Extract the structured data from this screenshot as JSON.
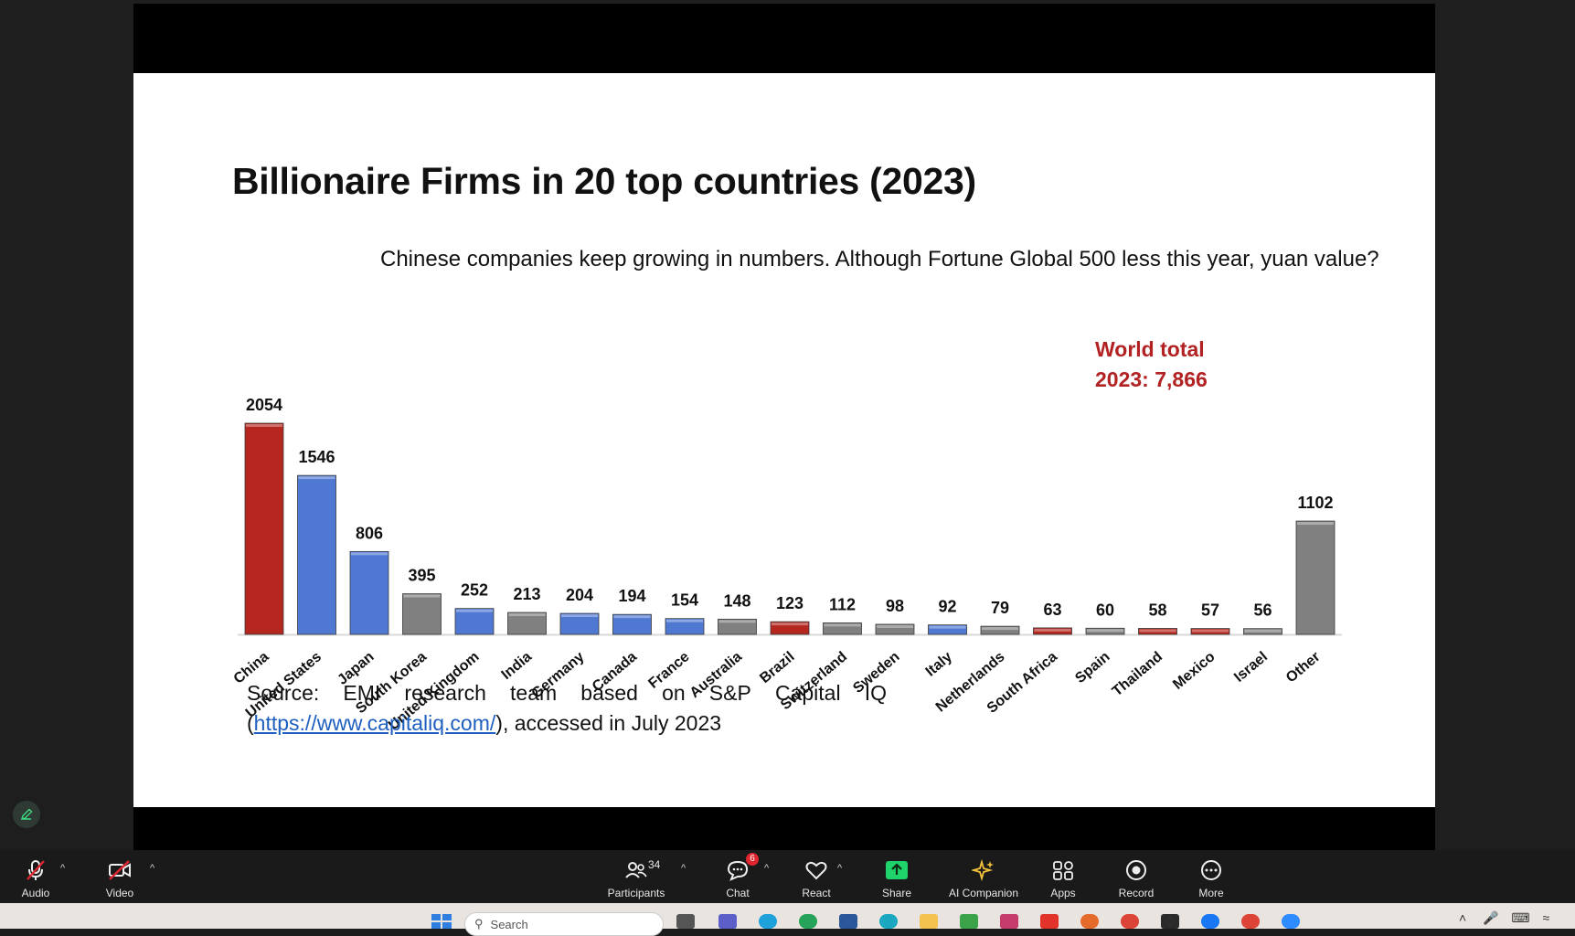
{
  "slide": {
    "title": "Billionaire Firms in 20 top countries (2023)",
    "subtitle": "Chinese companies keep growing in numbers. Although Fortune Global 500 less this year, yuan value?",
    "world_total_line1": "World total",
    "world_total_line2": "2023: 7,866",
    "source_words": [
      "Source:",
      "EMI",
      "research",
      "team",
      "based",
      "on",
      "S&P",
      "Capital",
      "IQ"
    ],
    "source_open_paren": "(",
    "source_link": "https://www.capitaliq.com/",
    "source_rest": "), accessed in July 2023"
  },
  "chart_data": {
    "type": "bar",
    "title": "Billionaire Firms in 20 top countries (2023)",
    "categories": [
      "China",
      "United States",
      "Japan",
      "South Korea",
      "United Kingdom",
      "India",
      "Germany",
      "Canada",
      "France",
      "Australia",
      "Brazil",
      "Switzerland",
      "Sweden",
      "Italy",
      "Netherlands",
      "South Africa",
      "Spain",
      "Thailand",
      "Mexico",
      "Israel",
      "Other"
    ],
    "values": [
      2054,
      1546,
      806,
      395,
      252,
      213,
      204,
      194,
      154,
      148,
      123,
      112,
      98,
      92,
      79,
      63,
      60,
      58,
      57,
      56,
      1102
    ],
    "bar_colors": [
      "#b5261e",
      "#4f78d2",
      "#4f78d2",
      "#808080",
      "#4f78d2",
      "#808080",
      "#4f78d2",
      "#4f78d2",
      "#4f78d2",
      "#808080",
      "#b5261e",
      "#808080",
      "#808080",
      "#4f78d2",
      "#808080",
      "#b5261e",
      "#808080",
      "#b5261e",
      "#b5261e",
      "#808080",
      "#808080"
    ],
    "xlabel": "",
    "ylabel": "",
    "ylim": [
      0,
      2054
    ],
    "grid": false,
    "data_labels": true
  },
  "toolbar": {
    "items": [
      {
        "label": "Audio"
      },
      {
        "label": "Video"
      },
      {
        "label": "Participants",
        "count": "34"
      },
      {
        "label": "Chat",
        "badge": "6"
      },
      {
        "label": "React"
      },
      {
        "label": "Share"
      },
      {
        "label": "AI Companion"
      },
      {
        "label": "Apps"
      },
      {
        "label": "Record"
      },
      {
        "label": "More"
      }
    ]
  },
  "taskbar": {
    "search_placeholder": "Search"
  },
  "colors": {
    "accent_red": "#b22222",
    "share_green": "#1fd36b",
    "muted_red": "#e0252f",
    "ai_gold": "#f5c33b"
  }
}
